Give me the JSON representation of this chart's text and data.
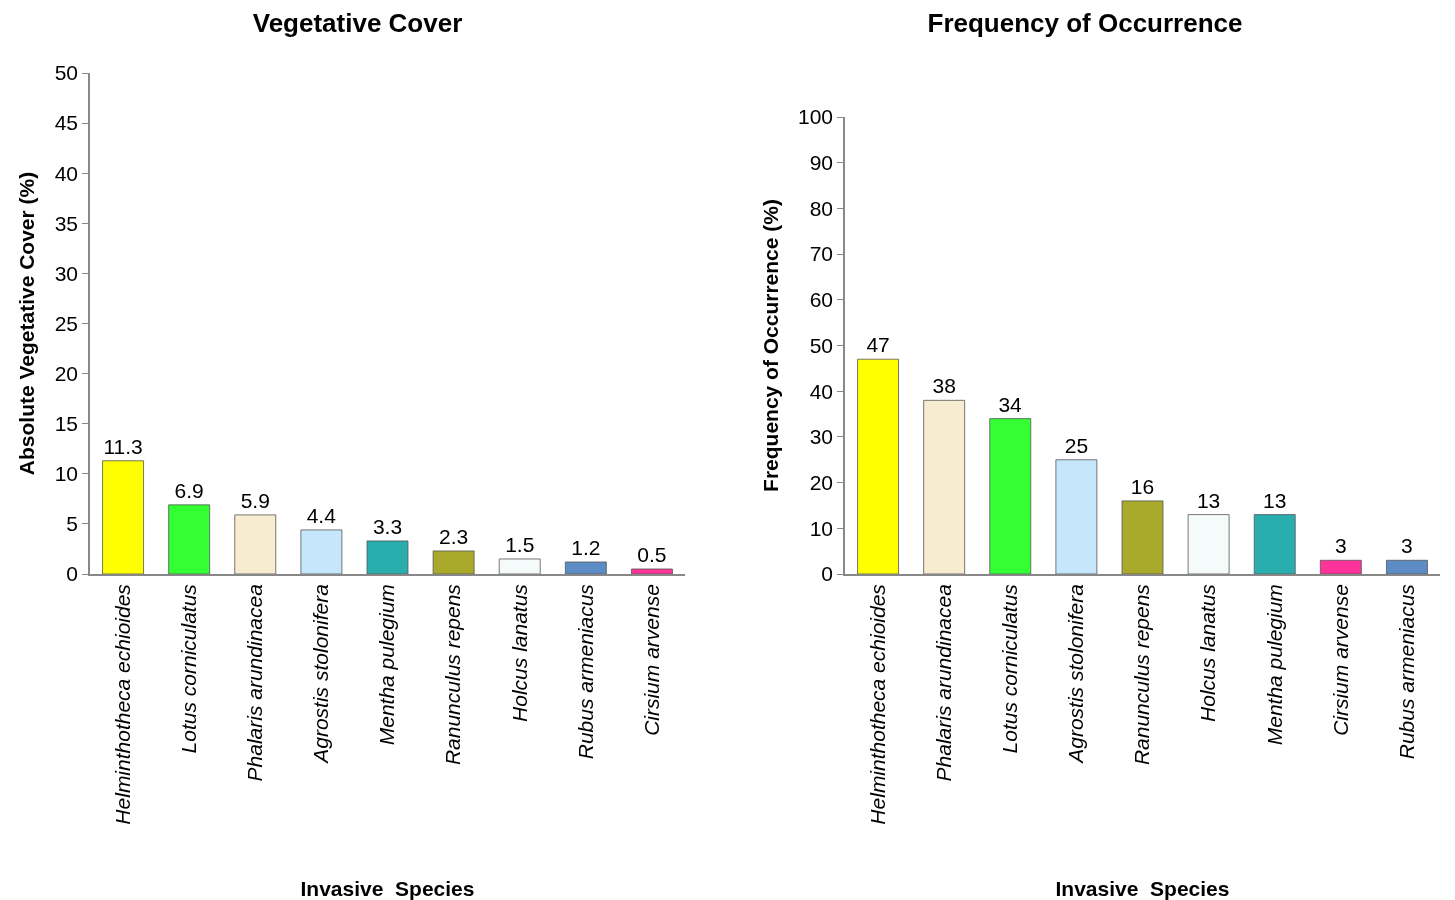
{
  "chart_data": [
    {
      "type": "bar",
      "title": "Vegetative Cover",
      "xlabel": "Invasive  Species",
      "ylabel": "Absolute Vegetative Cover (%)",
      "categories": [
        "Helminthotheca echioides",
        "Lotus corniculatus",
        "Phalaris arundinacea",
        "Agrostis stolonifera",
        "Mentha pulegium",
        "Ranunculus repens",
        "Holcus lanatus",
        "Rubus armeniacus",
        "Cirsium arvense"
      ],
      "values": [
        11.3,
        6.9,
        5.9,
        4.4,
        3.3,
        2.3,
        1.5,
        1.2,
        0.5
      ],
      "colors": [
        "#ffff00",
        "#33ff33",
        "#f7ecd0",
        "#c6e7fb",
        "#2aadad",
        "#a9a92b",
        "#f5fbfb",
        "#5b8cc4",
        "#ff3399"
      ],
      "ylim": [
        0,
        50
      ],
      "yticks": [
        0,
        5,
        10,
        15,
        20,
        25,
        30,
        35,
        40,
        45,
        50
      ],
      "grid": false,
      "data_labels": true
    },
    {
      "type": "bar",
      "title": "Frequency of Occurrence",
      "xlabel": "Invasive  Species",
      "ylabel": "Frequency of Occurrence (%)",
      "categories": [
        "Helminthotheca echioides",
        "Phalaris arundinacea",
        "Lotus corniculatus",
        "Agrostis stolonifera",
        "Ranunculus repens",
        "Holcus lanatus",
        "Mentha pulegium",
        "Cirsium arvense",
        "Rubus armeniacus"
      ],
      "values": [
        47,
        38,
        34,
        25,
        16,
        13,
        13,
        3,
        3
      ],
      "colors": [
        "#ffff00",
        "#f7ecd0",
        "#33ff33",
        "#c6e7fb",
        "#a9a92b",
        "#f5fbfb",
        "#2aadad",
        "#ff3399",
        "#5b8cc4"
      ],
      "ylim": [
        0,
        100
      ],
      "yticks": [
        0,
        10,
        20,
        30,
        40,
        50,
        60,
        70,
        80,
        90,
        100
      ],
      "grid": false,
      "data_labels": true
    }
  ]
}
